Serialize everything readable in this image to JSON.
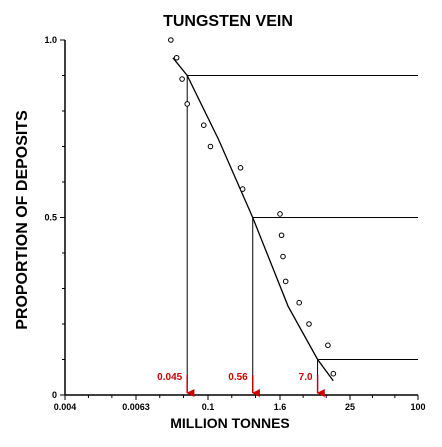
{
  "chart_data": {
    "type": "line",
    "title": "TUNGSTEN VEIN",
    "xlabel": "MILLION TONNES",
    "ylabel": "PROPORTION OF DEPOSITS",
    "xscale": "log",
    "xlim": [
      0.004,
      100
    ],
    "ylim": [
      0,
      1
    ],
    "xticks": [
      0.004,
      0.0063,
      0.1,
      1.6,
      25,
      100
    ],
    "xtick_labels": [
      "0.004",
      "0.0063",
      "0.1",
      "1.6",
      "25",
      "100"
    ],
    "yticks": [
      0,
      0.5,
      1
    ],
    "ytick_labels": [
      "0",
      "0.5",
      "1.0"
    ],
    "grid": false,
    "series": [
      {
        "kind": "scatter",
        "marker": "open-circle",
        "x": [
          0.024,
          0.03,
          0.037,
          0.045,
          0.085,
          0.11,
          0.35,
          0.38,
          1.6,
          1.7,
          1.8,
          2.0,
          3.4,
          5.0,
          10.5,
          13.0
        ],
        "y": [
          1.0,
          0.95,
          0.89,
          0.82,
          0.76,
          0.7,
          0.64,
          0.58,
          0.51,
          0.45,
          0.39,
          0.32,
          0.26,
          0.2,
          0.14,
          0.06
        ]
      },
      {
        "kind": "line",
        "x": [
          0.026,
          0.045,
          0.15,
          0.56,
          2.2,
          7.0,
          13.0
        ],
        "y": [
          0.95,
          0.9,
          0.72,
          0.5,
          0.25,
          0.1,
          0.04
        ]
      }
    ],
    "percentiles": [
      {
        "proportion": 0.9,
        "value": 0.045,
        "label": "0.045"
      },
      {
        "proportion": 0.5,
        "value": 0.56,
        "label": "0.56"
      },
      {
        "proportion": 0.1,
        "value": 7.0,
        "label": "7.0"
      }
    ],
    "marker_color": "#cc0000"
  }
}
